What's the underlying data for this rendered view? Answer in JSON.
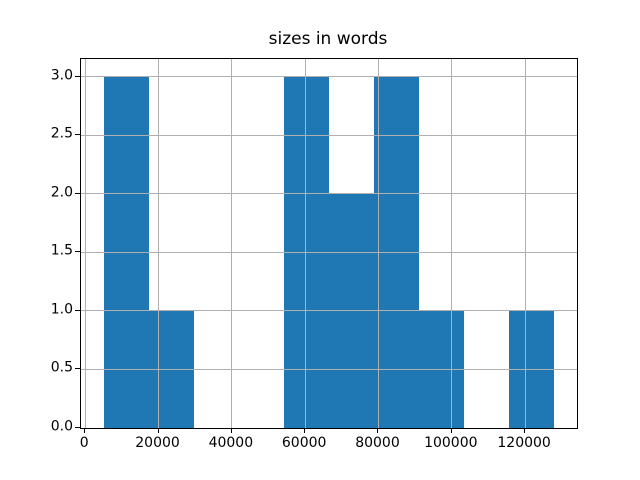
{
  "figure": {
    "title": "sizes in words",
    "background": "#ffffff"
  },
  "chart_data": {
    "type": "bar",
    "kind": "histogram",
    "title": "sizes in words",
    "xlabel": "",
    "ylabel": "",
    "bin_edges": [
      5000,
      17300,
      29600,
      41900,
      54200,
      66500,
      78800,
      91100,
      103400,
      115700,
      128000
    ],
    "counts": [
      3,
      1,
      0,
      0,
      3,
      2,
      3,
      1,
      0,
      1
    ],
    "xlim": [
      -1150,
      134150
    ],
    "ylim": [
      0,
      3.15
    ],
    "x_ticks": [
      0,
      20000,
      40000,
      60000,
      80000,
      100000,
      120000
    ],
    "x_tick_labels": [
      "0",
      "20000",
      "40000",
      "60000",
      "80000",
      "100000",
      "120000"
    ],
    "y_ticks": [
      0.0,
      0.5,
      1.0,
      1.5,
      2.0,
      2.5,
      3.0
    ],
    "y_tick_labels": [
      "0.0",
      "0.5",
      "1.0",
      "1.5",
      "2.0",
      "2.5",
      "3.0"
    ],
    "grid": true,
    "grid_above_bars": true,
    "legend": null,
    "colors": {
      "bar_fill": "#1f77b4",
      "grid": "#b0b0b0",
      "spine": "#000000",
      "text": "#000000",
      "background": "#ffffff"
    }
  }
}
